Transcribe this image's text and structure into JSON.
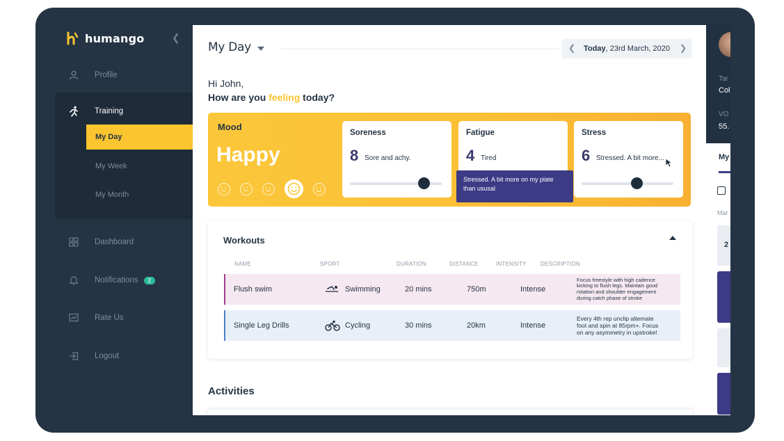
{
  "app": {
    "name": "humango",
    "accent": "#fbc52f",
    "sidebar_bg": "#253444",
    "tooltip_bg": "#3d3a86"
  },
  "sidebar": {
    "items": [
      {
        "label": "Profile",
        "icon": "user-icon"
      },
      {
        "label": "Training",
        "icon": "running-icon"
      },
      {
        "label": "Dashboard",
        "icon": "grid-icon"
      },
      {
        "label": "Notifications",
        "icon": "bell-icon",
        "badge": "2"
      },
      {
        "label": "Rate Us",
        "icon": "chart-icon"
      },
      {
        "label": "Logout",
        "icon": "logout-icon"
      }
    ],
    "training_sub": [
      "My Day",
      "My Week",
      "My Month"
    ]
  },
  "header": {
    "title": "My Day",
    "date_today": "Today",
    "date_rest": ", 23rd March, 2020"
  },
  "greeting": {
    "line1": "Hi John,",
    "line2_pre": "How are you ",
    "line2_highlight": "feeling",
    "line2_post": " today?"
  },
  "mood": {
    "label": "Mood",
    "value": "Happy",
    "faces": 5,
    "selected_face": 4
  },
  "metrics": [
    {
      "name": "Soreness",
      "value": "8",
      "desc": "Sore and achy.",
      "level": 0.8
    },
    {
      "name": "Fatigue",
      "value": "4",
      "desc": "Tired",
      "level": 0.4
    },
    {
      "name": "Stress",
      "value": "6",
      "desc": "Stressed. A bit more...",
      "level": 0.6
    }
  ],
  "tooltip": {
    "line1": "Stressed. A bit more on my plate",
    "line2": "than ususal"
  },
  "workouts": {
    "title": "Workouts",
    "columns": [
      "NAME",
      "SPORT",
      "DURATION",
      "DISTANCE",
      "INTENSITY",
      "DESCRIPTION"
    ],
    "rows": [
      {
        "name": "Flush swim",
        "sport": "Swimming",
        "sport_icon": "swimming-icon",
        "duration": "20 mins",
        "distance": "750m",
        "intensity": "Intense",
        "description": [
          "Focus freestyle with high cadence",
          "kicking to flush legs. Maintain good",
          "rotation and shoulder engagement",
          "during catch phase of stroke"
        ],
        "bg": "#f6e8f0",
        "accent": "#9b3c8a"
      },
      {
        "name": "Single Leg Drills",
        "sport": "Cycling",
        "sport_icon": "cycling-icon",
        "duration": "30 mins",
        "distance": "20km",
        "intensity": "Intense",
        "description": [
          "Every 4th rep unclip alternate",
          "foot and spin at 85rpm+. Focus",
          "on any asymmetry in upstroke!"
        ],
        "bg": "#e8eff7",
        "accent": "#4a7fc1"
      }
    ]
  },
  "activities": {
    "title": "Activities"
  },
  "right_panel": {
    "label1": "Tar",
    "value1": "Col",
    "label2": "VO",
    "value2": "55.",
    "tab": "My",
    "small_label": "Mar",
    "box_value": "2"
  }
}
